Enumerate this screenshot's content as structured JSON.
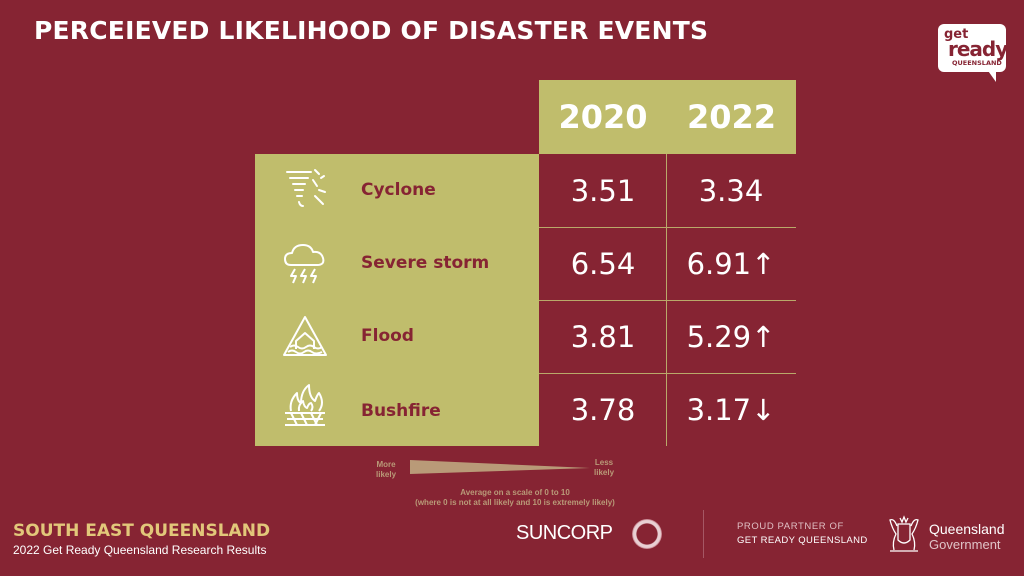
{
  "title": "PERCEIEVED LIKELIHOOD OF DISASTER EVENTS",
  "logo": {
    "line1": "get",
    "line2": "ready",
    "line3": "QUEENSLAND"
  },
  "chart_data": {
    "type": "table",
    "columns": [
      "2020",
      "2022"
    ],
    "rows": [
      {
        "hazard": "Cyclone",
        "icon": "cyclone-icon",
        "v2020": "3.51",
        "v2022": "3.34"
      },
      {
        "hazard": "Severe storm",
        "icon": "storm-icon",
        "v2020": "6.54",
        "v2022": "6.91↑"
      },
      {
        "hazard": "Flood",
        "icon": "flood-icon",
        "v2020": "3.81",
        "v2022": "5.29↑"
      },
      {
        "hazard": "Bushfire",
        "icon": "bushfire-icon",
        "v2020": "3.78",
        "v2022": "3.17↓"
      }
    ]
  },
  "legend": {
    "more": [
      "More",
      "likely"
    ],
    "less": [
      "Less",
      "likely"
    ],
    "note_line1": "Average on a scale of 0 to 10",
    "note_line2": "(where 0 is not at all likely and 10 is extremely likely)"
  },
  "footer": {
    "region": "SOUTH EAST QUEENSLAND",
    "subtitle": "2022 Get Ready Queensland Research Results",
    "sponsor": "SUNCORP",
    "partner_line1": "PROUD PARTNER OF",
    "partner_line2": "GET READY QUEENSLAND",
    "gov_line1": "Queensland",
    "gov_line2": "Government"
  },
  "colors": {
    "background": "#862433",
    "panel": "#c0bd6c",
    "region_text": "#e2c77a"
  }
}
